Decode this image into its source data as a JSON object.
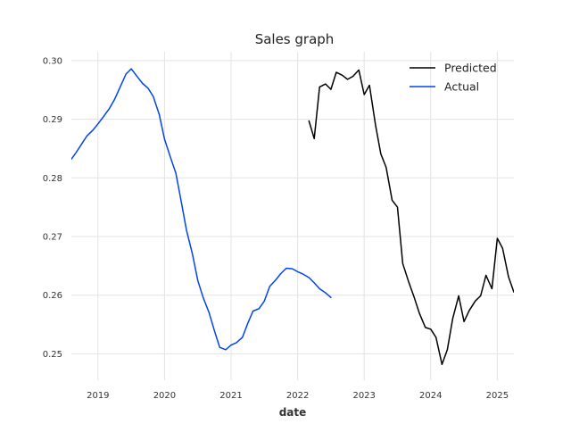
{
  "chart_data": {
    "type": "line",
    "title": "Sales graph",
    "xlabel": "date",
    "ylabel": "",
    "xlim": [
      2018.6,
      2025.25
    ],
    "ylim": [
      0.2455,
      0.3015
    ],
    "x_ticks": [
      {
        "value": 2019,
        "label": "2019"
      },
      {
        "value": 2020,
        "label": "2020"
      },
      {
        "value": 2021,
        "label": "2021"
      },
      {
        "value": 2022,
        "label": "2022"
      },
      {
        "value": 2023,
        "label": "2023"
      },
      {
        "value": 2024,
        "label": "2024"
      },
      {
        "value": 2025,
        "label": "2025"
      }
    ],
    "y_ticks": [
      {
        "value": 0.25,
        "label": "0.25"
      },
      {
        "value": 0.26,
        "label": "0.26"
      },
      {
        "value": 0.27,
        "label": "0.27"
      },
      {
        "value": 0.28,
        "label": "0.28"
      },
      {
        "value": 0.29,
        "label": "0.29"
      },
      {
        "value": 0.3,
        "label": "0.30"
      }
    ],
    "grid": true,
    "legend_position": "top-right",
    "series": [
      {
        "name": "Predicted",
        "color": "#000000",
        "x": [
          2022.17,
          2022.25,
          2022.33,
          2022.42,
          2022.5,
          2022.58,
          2022.67,
          2022.75,
          2022.83,
          2022.92,
          2023.0,
          2023.08,
          2023.17,
          2023.25,
          2023.33,
          2023.42,
          2023.5,
          2023.58,
          2023.67,
          2023.75,
          2023.83,
          2023.92,
          2024.0,
          2024.08,
          2024.17,
          2024.25,
          2024.33,
          2024.42,
          2024.5,
          2024.58,
          2024.67,
          2024.75,
          2024.83,
          2024.92,
          2025.0,
          2025.08,
          2025.17,
          2025.25
        ],
        "values": [
          0.2897,
          0.2867,
          0.2955,
          0.296,
          0.2951,
          0.298,
          0.2975,
          0.2968,
          0.2973,
          0.2984,
          0.2942,
          0.2958,
          0.289,
          0.2841,
          0.2818,
          0.2762,
          0.275,
          0.2654,
          0.2622,
          0.2597,
          0.2569,
          0.2545,
          0.2542,
          0.2528,
          0.2482,
          0.2507,
          0.256,
          0.2599,
          0.2555,
          0.2574,
          0.259,
          0.2599,
          0.2634,
          0.2611,
          0.2697,
          0.268,
          0.2631,
          0.2605
        ]
      },
      {
        "name": "Actual",
        "color": "#0044ee",
        "x": [
          2018.6,
          2018.67,
          2018.75,
          2018.83,
          2018.92,
          2019.0,
          2019.08,
          2019.17,
          2019.25,
          2019.33,
          2019.42,
          2019.5,
          2019.58,
          2019.67,
          2019.75,
          2019.83,
          2019.92,
          2020.0,
          2020.08,
          2020.17,
          2020.25,
          2020.33,
          2020.42,
          2020.5,
          2020.58,
          2020.67,
          2020.75,
          2020.83,
          2020.92,
          2021.0,
          2021.08,
          2021.17,
          2021.25,
          2021.33,
          2021.42,
          2021.5,
          2021.58,
          2021.67,
          2021.75,
          2021.83,
          2021.92,
          2022.0,
          2022.08,
          2022.17,
          2022.25,
          2022.33,
          2022.42,
          2022.5
        ],
        "values": [
          0.2832,
          0.2843,
          0.2857,
          0.2871,
          0.2881,
          0.2892,
          0.2904,
          0.2918,
          0.2934,
          0.2954,
          0.2977,
          0.2986,
          0.2974,
          0.2961,
          0.2953,
          0.2939,
          0.2908,
          0.2866,
          0.2838,
          0.2808,
          0.276,
          0.2711,
          0.267,
          0.2625,
          0.2596,
          0.257,
          0.2539,
          0.2511,
          0.2507,
          0.2515,
          0.2519,
          0.2528,
          0.2552,
          0.2573,
          0.2577,
          0.259,
          0.2615,
          0.2626,
          0.2637,
          0.2646,
          0.2645,
          0.264,
          0.2636,
          0.263,
          0.2621,
          0.2611,
          0.2604,
          0.2596
        ]
      }
    ]
  }
}
